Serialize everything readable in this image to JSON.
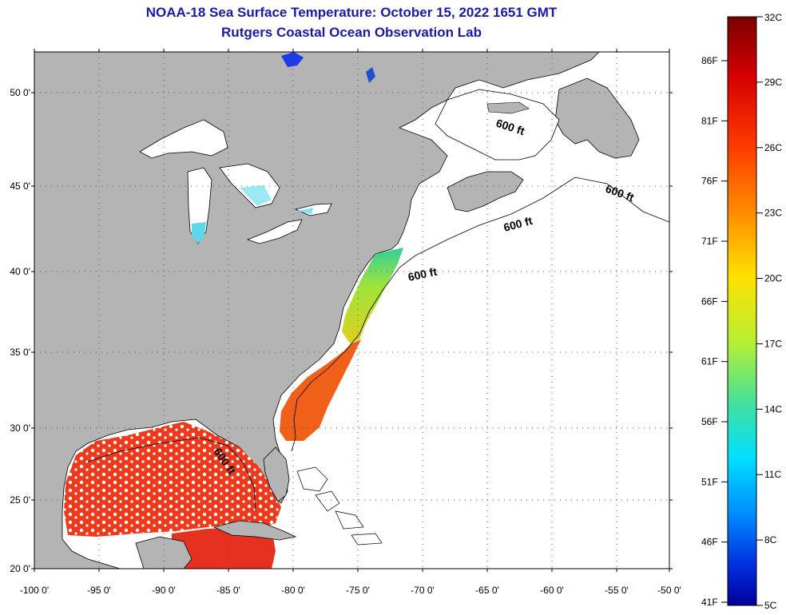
{
  "header": {
    "title": "NOAA-18 Sea Surface Temperature:  October 15, 2022 1651 GMT",
    "subtitle": "Rutgers Coastal Ocean Observation Lab"
  },
  "map": {
    "lat_labels": [
      "50 0'",
      "45 0'",
      "40 0'",
      "35 0'",
      "30 0'",
      "25 0'",
      "20 0'"
    ],
    "lon_labels": [
      "-100 0'",
      "-95 0'",
      "-90 0'",
      "-85 0'",
      "-80 0'",
      "-75 0'",
      "-70 0'",
      "-65 0'",
      "-60 0'",
      "-55 0'",
      "-50 0'"
    ],
    "isobath_label": "600 ft",
    "colors": {
      "land": "#b4b4b4",
      "ocean_no_data": "#ffffff",
      "gulf_sst": "#ee3a1c",
      "gulf_stream": "#f06018",
      "mid_atlantic": "#8edd3a",
      "great_lakes": "#7fe3f0"
    }
  },
  "colorbar": {
    "celsius": [
      "32C",
      "29C",
      "26C",
      "23C",
      "20C",
      "17C",
      "14C",
      "11C",
      "8C",
      "5C"
    ],
    "fahrenheit": [
      "86F",
      "81F",
      "76F",
      "71F",
      "66F",
      "61F",
      "56F",
      "51F",
      "46F",
      "41F"
    ],
    "gradient": [
      "#7a0000",
      "#d40000",
      "#ff3a00",
      "#ff8a00",
      "#ffe000",
      "#b8f030",
      "#40e0a0",
      "#00e0ff",
      "#0090ff",
      "#0030e0",
      "#00009a"
    ]
  }
}
